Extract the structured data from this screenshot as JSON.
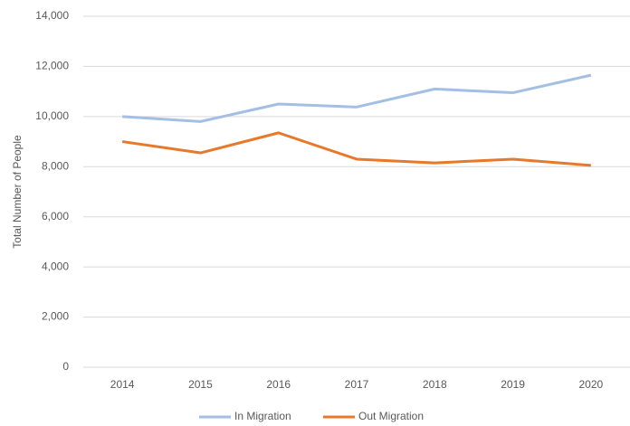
{
  "chart_data": {
    "type": "line",
    "y_label": "Total Number of People",
    "categories": [
      "2014",
      "2015",
      "2016",
      "2017",
      "2018",
      "2019",
      "2020"
    ],
    "series": [
      {
        "name": "In Migration",
        "color": "#a3bfe4",
        "values": [
          10000,
          9800,
          10500,
          10380,
          11100,
          10950,
          11650
        ]
      },
      {
        "name": "Out Migration",
        "color": "#e8782a",
        "values": [
          9000,
          8550,
          9350,
          8300,
          8150,
          8300,
          8050
        ]
      }
    ],
    "ylim": [
      0,
      14000
    ],
    "yticks": [
      0,
      {
        "value": 2000,
        "label": "2,000"
      },
      {
        "value": 4000,
        "label": "4,000"
      },
      {
        "value": 6000,
        "label": "6,000"
      },
      {
        "value": 8000,
        "label": "8,000"
      },
      {
        "value": 10000,
        "label": "10,000"
      },
      {
        "value": 12000,
        "label": "12,000"
      },
      {
        "value": 14000,
        "label": "14,000"
      }
    ],
    "grid": true,
    "legend": "bottom"
  }
}
